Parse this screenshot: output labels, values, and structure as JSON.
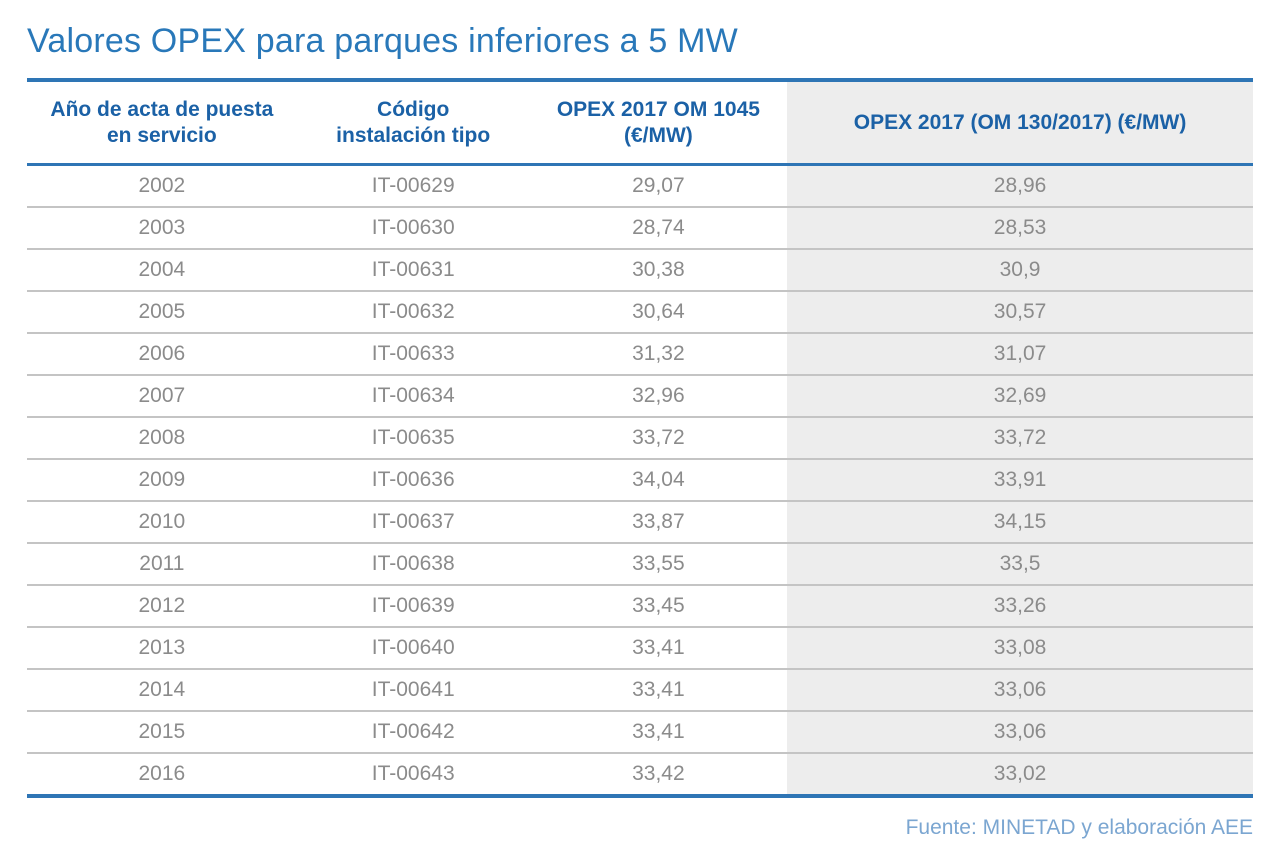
{
  "title": "Valores OPEX para parques inferiores a 5 MW",
  "chart_data": {
    "type": "table",
    "title": "Valores OPEX para parques inferiores a 5 MW",
    "columns": [
      "Año de acta de puesta en servicio",
      "Código instalación tipo",
      "OPEX 2017 OM 1045 (€/MW)",
      "OPEX 2017 (OM 130/2017) (€/MW)"
    ],
    "column_display": [
      "Año de acta de puesta\nen servicio",
      "Código\ninstalación tipo",
      "OPEX 2017 OM 1045\n(€/MW)",
      "OPEX 2017 (OM 130/2017) (€/MW)"
    ],
    "rows": [
      [
        "2002",
        "IT-00629",
        "29,07",
        "28,96"
      ],
      [
        "2003",
        "IT-00630",
        "28,74",
        "28,53"
      ],
      [
        "2004",
        "IT-00631",
        "30,38",
        "30,9"
      ],
      [
        "2005",
        "IT-00632",
        "30,64",
        "30,57"
      ],
      [
        "2006",
        "IT-00633",
        "31,32",
        "31,07"
      ],
      [
        "2007",
        "IT-00634",
        "32,96",
        "32,69"
      ],
      [
        "2008",
        "IT-00635",
        "33,72",
        "33,72"
      ],
      [
        "2009",
        "IT-00636",
        "34,04",
        "33,91"
      ],
      [
        "2010",
        "IT-00637",
        "33,87",
        "34,15"
      ],
      [
        "2011",
        "IT-00638",
        "33,55",
        "33,5"
      ],
      [
        "2012",
        "IT-00639",
        "33,45",
        "33,26"
      ],
      [
        "2013",
        "IT-00640",
        "33,41",
        "33,08"
      ],
      [
        "2014",
        "IT-00641",
        "33,41",
        "33,06"
      ],
      [
        "2015",
        "IT-00642",
        "33,41",
        "33,06"
      ],
      [
        "2016",
        "IT-00643",
        "33,42",
        "33,02"
      ]
    ]
  },
  "footer": {
    "source": "Fuente: MINETAD y elaboración AEE"
  },
  "colors": {
    "title_text": "#2978B9",
    "header_text": "#1B61A6",
    "rule_blue": "#2E75B5",
    "body_text": "#8B8B8B",
    "row_divider": "#C4C4C4",
    "highlight_column_bg": "#EDEDED",
    "source_text": "#7BA6D1"
  }
}
